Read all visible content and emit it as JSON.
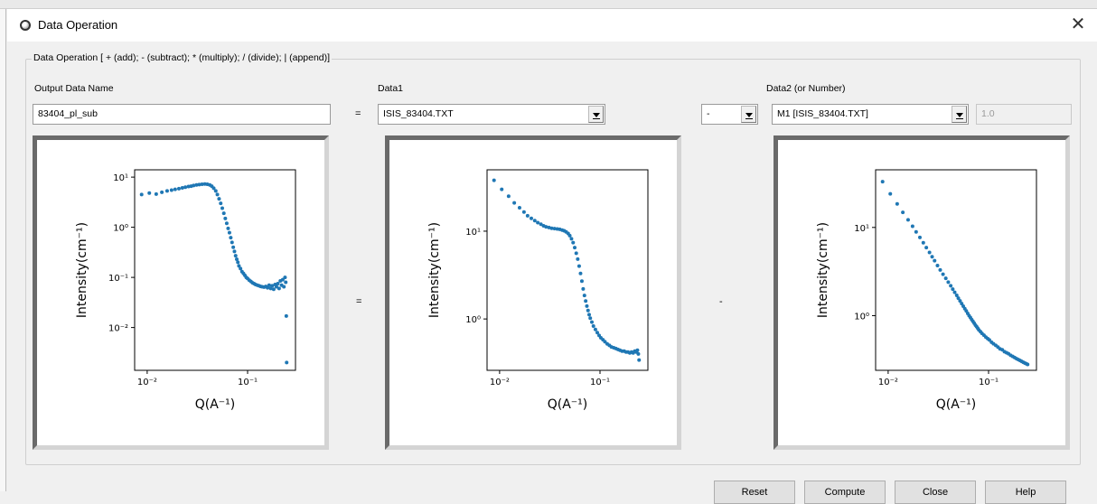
{
  "window": {
    "title": "Data Operation",
    "close_glyph": "✕"
  },
  "group": {
    "title": "Data Operation [ + (add); - (subtract); * (multiply); / (divide); | (append)]"
  },
  "output": {
    "label": "Output Data Name",
    "value": "83404_pl_sub"
  },
  "equals_sign": "=",
  "data1": {
    "label": "Data1",
    "value": "ISIS_83404.TXT"
  },
  "operator": {
    "value": "-"
  },
  "data2": {
    "label": "Data2 (or Number)",
    "value": "M1 [ISIS_83404.TXT]",
    "number_value": "1.0"
  },
  "plot_separators": {
    "equals": "=",
    "operator": "-"
  },
  "buttons": {
    "reset": "Reset",
    "compute": "Compute",
    "close": "Close",
    "help": "Help"
  },
  "colors": {
    "marker": "#1f77b4",
    "window_bg": "#f0f0f0"
  },
  "chart_data": [
    {
      "type": "scatter",
      "title": "",
      "xlabel": "Q(A⁻¹)",
      "ylabel": "Intensity(cm⁻¹)",
      "xscale": "log",
      "yscale": "log",
      "xlim": [
        0.0075,
        0.3
      ],
      "ylim": [
        0.0014,
        14
      ],
      "xticks": [
        {
          "v": 0.01,
          "label": "10⁻²"
        },
        {
          "v": 0.1,
          "label": "10⁻¹"
        }
      ],
      "yticks": [
        {
          "v": 10,
          "label": "10¹"
        },
        {
          "v": 1,
          "label": "10⁰"
        },
        {
          "v": 0.1,
          "label": "10⁻¹"
        },
        {
          "v": 0.01,
          "label": "10⁻²"
        }
      ],
      "x": [
        0.0088,
        0.0105,
        0.0123,
        0.014,
        0.0158,
        0.0175,
        0.019,
        0.0207,
        0.0224,
        0.024,
        0.0258,
        0.0274,
        0.029,
        0.031,
        0.033,
        0.0352,
        0.0375,
        0.0397,
        0.042,
        0.044,
        0.046,
        0.0482,
        0.05,
        0.052,
        0.054,
        0.056,
        0.058,
        0.06,
        0.062,
        0.064,
        0.066,
        0.068,
        0.07,
        0.072,
        0.074,
        0.076,
        0.078,
        0.08,
        0.082,
        0.085,
        0.088,
        0.091,
        0.094,
        0.097,
        0.1,
        0.104,
        0.108,
        0.112,
        0.116,
        0.12,
        0.125,
        0.13,
        0.135,
        0.14,
        0.146,
        0.152,
        0.158,
        0.164,
        0.17,
        0.176,
        0.182,
        0.188,
        0.194,
        0.2,
        0.206,
        0.212,
        0.218,
        0.224,
        0.23,
        0.236,
        0.24,
        0.243,
        0.245
      ],
      "y": [
        4.5,
        4.8,
        4.6,
        5.0,
        5.3,
        5.5,
        5.7,
        5.9,
        6.1,
        6.3,
        6.5,
        6.6,
        6.8,
        7.0,
        7.1,
        7.2,
        7.3,
        7.2,
        7.0,
        6.6,
        6.0,
        5.3,
        4.5,
        3.7,
        3.0,
        2.4,
        1.9,
        1.5,
        1.2,
        0.95,
        0.78,
        0.62,
        0.5,
        0.4,
        0.33,
        0.27,
        0.23,
        0.2,
        0.17,
        0.15,
        0.13,
        0.12,
        0.11,
        0.1,
        0.095,
        0.088,
        0.083,
        0.078,
        0.075,
        0.072,
        0.07,
        0.068,
        0.066,
        0.065,
        0.064,
        0.066,
        0.062,
        0.07,
        0.06,
        0.068,
        0.058,
        0.072,
        0.065,
        0.075,
        0.06,
        0.085,
        0.07,
        0.09,
        0.065,
        0.1,
        0.08,
        0.017,
        0.002
      ]
    },
    {
      "type": "scatter",
      "title": "",
      "xlabel": "Q(A⁻¹)",
      "ylabel": "Intensity(cm⁻¹)",
      "xscale": "log",
      "yscale": "log",
      "xlim": [
        0.0075,
        0.3
      ],
      "ylim": [
        0.26,
        50
      ],
      "xticks": [
        {
          "v": 0.01,
          "label": "10⁻²"
        },
        {
          "v": 0.1,
          "label": "10⁻¹"
        }
      ],
      "yticks": [
        {
          "v": 10,
          "label": "10¹"
        },
        {
          "v": 1,
          "label": "10⁰"
        }
      ],
      "x": [
        0.0088,
        0.0105,
        0.0123,
        0.014,
        0.0158,
        0.0175,
        0.019,
        0.0207,
        0.0224,
        0.024,
        0.0258,
        0.0274,
        0.029,
        0.031,
        0.033,
        0.0352,
        0.0375,
        0.0397,
        0.042,
        0.044,
        0.046,
        0.0482,
        0.05,
        0.052,
        0.054,
        0.056,
        0.058,
        0.06,
        0.062,
        0.064,
        0.066,
        0.068,
        0.07,
        0.072,
        0.074,
        0.076,
        0.078,
        0.08,
        0.083,
        0.086,
        0.09,
        0.094,
        0.098,
        0.102,
        0.107,
        0.112,
        0.118,
        0.124,
        0.13,
        0.137,
        0.144,
        0.151,
        0.158,
        0.166,
        0.174,
        0.182,
        0.19,
        0.198,
        0.206,
        0.214,
        0.222,
        0.23,
        0.236,
        0.241,
        0.245
      ],
      "y": [
        38,
        30,
        25,
        21,
        18.5,
        16.5,
        15,
        14,
        13.2,
        12.5,
        12,
        11.5,
        11.2,
        11,
        10.8,
        10.7,
        10.6,
        10.5,
        10.3,
        10.1,
        9.8,
        9.4,
        8.9,
        8.2,
        7.4,
        6.5,
        5.6,
        4.8,
        4.0,
        3.3,
        2.7,
        2.2,
        1.85,
        1.6,
        1.4,
        1.25,
        1.12,
        1.02,
        0.92,
        0.83,
        0.76,
        0.7,
        0.65,
        0.61,
        0.58,
        0.55,
        0.52,
        0.5,
        0.48,
        0.47,
        0.46,
        0.45,
        0.44,
        0.43,
        0.43,
        0.42,
        0.42,
        0.41,
        0.42,
        0.41,
        0.43,
        0.42,
        0.44,
        0.4,
        0.34
      ]
    },
    {
      "type": "scatter",
      "title": "",
      "xlabel": "Q(A⁻¹)",
      "ylabel": "Intensity(cm⁻¹)",
      "xscale": "log",
      "yscale": "log",
      "xlim": [
        0.0075,
        0.3
      ],
      "ylim": [
        0.24,
        45
      ],
      "xticks": [
        {
          "v": 0.01,
          "label": "10⁻²"
        },
        {
          "v": 0.1,
          "label": "10⁻¹"
        }
      ],
      "yticks": [
        {
          "v": 10,
          "label": "10¹"
        },
        {
          "v": 1,
          "label": "10⁰"
        }
      ],
      "x": [
        0.0088,
        0.0105,
        0.0123,
        0.014,
        0.0158,
        0.0175,
        0.019,
        0.0207,
        0.0224,
        0.024,
        0.0258,
        0.0274,
        0.029,
        0.031,
        0.033,
        0.0352,
        0.0375,
        0.0397,
        0.042,
        0.044,
        0.046,
        0.0482,
        0.05,
        0.052,
        0.054,
        0.056,
        0.058,
        0.06,
        0.062,
        0.064,
        0.066,
        0.068,
        0.07,
        0.072,
        0.074,
        0.076,
        0.078,
        0.08,
        0.083,
        0.086,
        0.09,
        0.094,
        0.098,
        0.102,
        0.107,
        0.112,
        0.118,
        0.124,
        0.13,
        0.137,
        0.144,
        0.151,
        0.158,
        0.166,
        0.174,
        0.182,
        0.19,
        0.198,
        0.206,
        0.214,
        0.222,
        0.23,
        0.238,
        0.245
      ],
      "y": [
        33,
        24,
        18.5,
        14.8,
        12.2,
        10.3,
        8.9,
        7.7,
        6.7,
        5.9,
        5.2,
        4.65,
        4.2,
        3.7,
        3.3,
        2.95,
        2.65,
        2.4,
        2.18,
        2.0,
        1.84,
        1.7,
        1.58,
        1.47,
        1.37,
        1.28,
        1.2,
        1.13,
        1.06,
        1.0,
        0.95,
        0.9,
        0.86,
        0.82,
        0.78,
        0.75,
        0.72,
        0.69,
        0.66,
        0.63,
        0.6,
        0.57,
        0.55,
        0.53,
        0.5,
        0.48,
        0.46,
        0.44,
        0.42,
        0.41,
        0.39,
        0.38,
        0.37,
        0.355,
        0.345,
        0.335,
        0.325,
        0.318,
        0.31,
        0.303,
        0.296,
        0.29,
        0.285,
        0.28
      ]
    }
  ]
}
